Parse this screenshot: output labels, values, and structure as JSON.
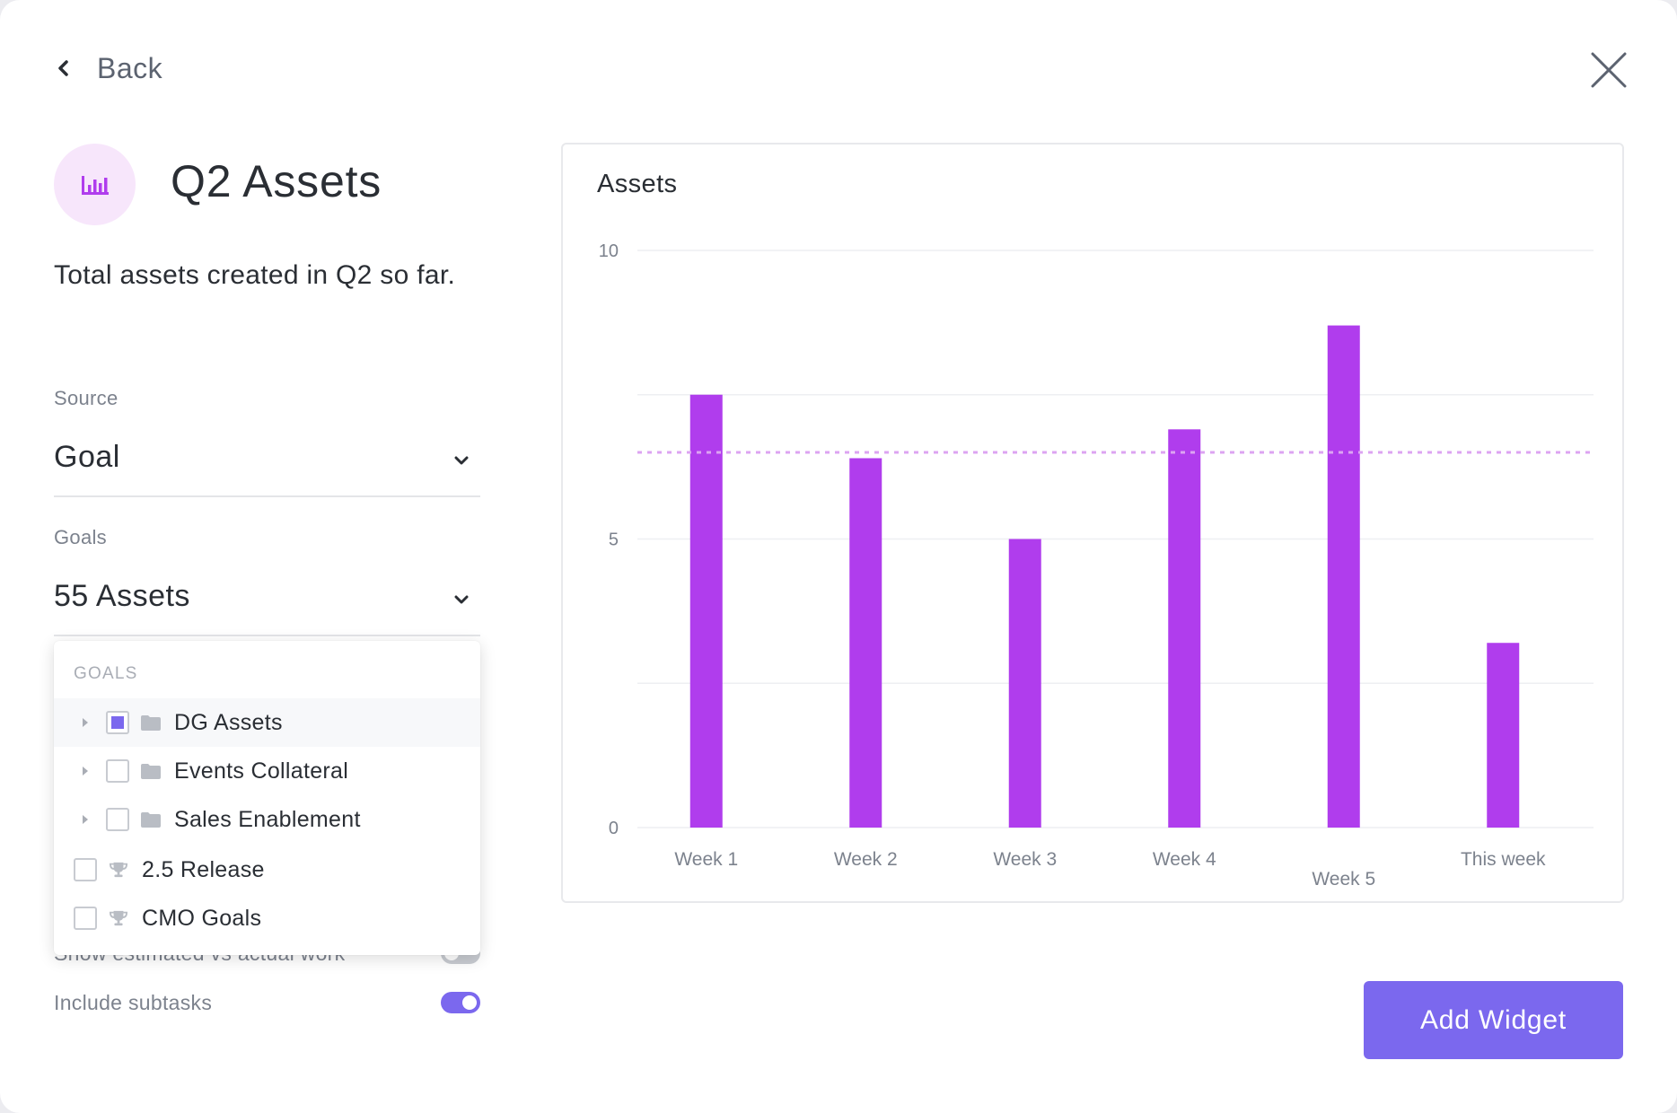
{
  "nav": {
    "back_label": "Back"
  },
  "widget": {
    "title": "Q2 Assets",
    "description": "Total assets created in Q2 so far."
  },
  "source": {
    "label": "Source",
    "value": "Goal"
  },
  "goals": {
    "label": "Goals",
    "value": "55 Assets"
  },
  "dropdown": {
    "header": "GOALS",
    "items": [
      {
        "label": "DG Assets",
        "kind": "folder",
        "expandable": true,
        "checked": true
      },
      {
        "label": "Events Collateral",
        "kind": "folder",
        "expandable": true,
        "checked": false
      },
      {
        "label": "Sales Enablement",
        "kind": "folder",
        "expandable": true,
        "checked": false
      },
      {
        "label": "2.5 Release",
        "kind": "trophy",
        "expandable": false,
        "checked": false
      },
      {
        "label": "CMO Goals",
        "kind": "trophy",
        "expandable": false,
        "checked": false
      }
    ]
  },
  "options": {
    "estimated_label": "Show estimated vs actual work",
    "estimated_on": false,
    "subtasks_label": "Include subtasks",
    "subtasks_on": true
  },
  "actions": {
    "add_widget_label": "Add Widget"
  },
  "colors": {
    "accent": "#7b68ee",
    "bar": "#b03ded",
    "target_line": "#dca4f2",
    "icon_bg": "#f7e6fb"
  },
  "chart_data": {
    "type": "bar",
    "title": "Assets",
    "categories": [
      "Week 1",
      "Week 2",
      "Week 3",
      "Week 4",
      "Week 5",
      "This week"
    ],
    "values": [
      7.5,
      6.4,
      5.0,
      6.9,
      8.7,
      3.2
    ],
    "target": 6.5,
    "ylim": [
      0,
      10
    ],
    "yticks": [
      0,
      5,
      10
    ],
    "grid": true,
    "xlabel": "",
    "ylabel": ""
  }
}
